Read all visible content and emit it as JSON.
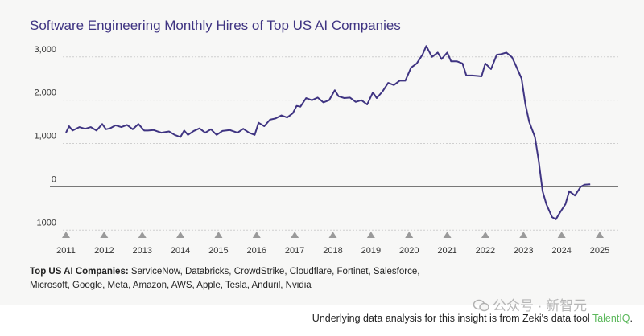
{
  "chart_data": {
    "type": "line",
    "title": "Software Engineering Monthly Hires of Top US AI Companies",
    "xlabel": "",
    "ylabel": "",
    "xlim": [
      2011,
      2025
    ],
    "ylim": [
      -1000,
      3200
    ],
    "y_ticks": [
      {
        "value": 3000,
        "label": "3,000"
      },
      {
        "value": 2000,
        "label": "2,000"
      },
      {
        "value": 1000,
        "label": "1,000"
      },
      {
        "value": 0,
        "label": "0"
      },
      {
        "value": -1000,
        "label": "-1000"
      }
    ],
    "x_ticks": [
      2011,
      2012,
      2013,
      2014,
      2015,
      2016,
      2017,
      2018,
      2019,
      2020,
      2021,
      2022,
      2023,
      2024,
      2025
    ],
    "grid": "horizontal-dashed",
    "series": [
      {
        "name": "Software engineering monthly hires",
        "x": [
          2011.0,
          2011.08,
          2011.17,
          2011.35,
          2011.5,
          2011.65,
          2011.8,
          2011.95,
          2012.05,
          2012.15,
          2012.3,
          2012.45,
          2012.6,
          2012.75,
          2012.9,
          2013.05,
          2013.15,
          2013.3,
          2013.5,
          2013.7,
          2013.85,
          2014.0,
          2014.1,
          2014.2,
          2014.35,
          2014.5,
          2014.65,
          2014.8,
          2014.95,
          2015.1,
          2015.3,
          2015.5,
          2015.65,
          2015.8,
          2015.95,
          2016.05,
          2016.2,
          2016.35,
          2016.5,
          2016.65,
          2016.8,
          2016.95,
          2017.05,
          2017.15,
          2017.3,
          2017.45,
          2017.6,
          2017.75,
          2017.9,
          2018.05,
          2018.15,
          2018.3,
          2018.45,
          2018.6,
          2018.75,
          2018.9,
          2019.05,
          2019.15,
          2019.3,
          2019.45,
          2019.6,
          2019.75,
          2019.9,
          2020.05,
          2020.2,
          2020.35,
          2020.45,
          2020.6,
          2020.75,
          2020.85,
          2021.0,
          2021.1,
          2021.25,
          2021.4,
          2021.5,
          2021.65,
          2021.8,
          2021.9,
          2022.0,
          2022.15,
          2022.3,
          2022.4,
          2022.55,
          2022.7,
          2022.8,
          2022.95,
          2023.05,
          2023.15,
          2023.3,
          2023.4,
          2023.5,
          2023.6,
          2023.75,
          2023.85,
          2023.95,
          2024.1,
          2024.2,
          2024.35,
          2024.5,
          2024.6,
          2024.75
        ],
        "y": [
          1250,
          1400,
          1300,
          1380,
          1340,
          1380,
          1300,
          1450,
          1330,
          1350,
          1420,
          1380,
          1430,
          1330,
          1450,
          1300,
          1300,
          1310,
          1250,
          1280,
          1200,
          1150,
          1300,
          1200,
          1290,
          1350,
          1250,
          1330,
          1200,
          1290,
          1310,
          1250,
          1340,
          1250,
          1200,
          1480,
          1400,
          1550,
          1580,
          1650,
          1600,
          1700,
          1870,
          1850,
          2050,
          2000,
          2060,
          1950,
          2000,
          2230,
          2090,
          2050,
          2060,
          1960,
          2000,
          1900,
          2180,
          2050,
          2200,
          2400,
          2350,
          2450,
          2450,
          2750,
          2850,
          3050,
          3250,
          3000,
          3100,
          2950,
          3100,
          2900,
          2900,
          2850,
          2570,
          2570,
          2560,
          2550,
          2850,
          2720,
          3050,
          3060,
          3100,
          2990,
          2800,
          2500,
          1900,
          1500,
          1150,
          600,
          -100,
          -400,
          -700,
          -750,
          -600,
          -400,
          -100,
          -200,
          0,
          50,
          60
        ]
      }
    ],
    "companies_label": "Top US AI Companies:",
    "companies_list": "ServiceNow, Databricks, CrowdStrike, Cloudflare, Fortinet, Salesforce, Microsoft, Google, Meta, Amazon, AWS, Apple, Tesla, Anduril, Nvidia",
    "colors": {
      "line": "#3f3482",
      "title": "#3f3482",
      "grid": "#cfcfcf",
      "marker": "#9a9a9a",
      "zero_line": "#666666"
    }
  },
  "footer": {
    "prefix": "Underlying data analysis for this insight is from Zeki's data tool ",
    "tool": "TalentIQ",
    "suffix": "."
  },
  "watermark": {
    "text": "公众号 · 新智元"
  }
}
